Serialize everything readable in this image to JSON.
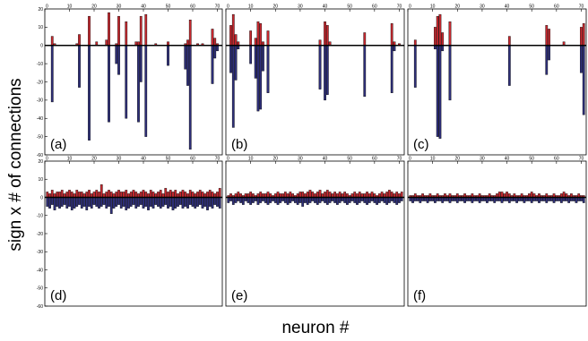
{
  "figure": {
    "ylabel": "sign x # of connections",
    "xlabel": "neuron #"
  },
  "colors": {
    "positive": "#c8282f",
    "negative": "#2e2f7a",
    "zero_line": "#000000",
    "frame": "#000000"
  },
  "chart_data": [
    {
      "type": "bar",
      "panel_label": "(a)",
      "xlim": [
        0,
        72
      ],
      "ylim": [
        -60,
        20
      ],
      "xticks": [
        "0",
        "10",
        "20",
        "30",
        "40",
        "50",
        "60",
        "70"
      ],
      "yticks": [
        "20",
        "10",
        "0",
        "-10",
        "-20",
        "-30",
        "-40",
        "-50",
        "-60"
      ],
      "bars": [
        {
          "x": 3,
          "pos": 5,
          "neg": -31
        },
        {
          "x": 4,
          "pos": 1,
          "neg": 0
        },
        {
          "x": 13,
          "pos": 1,
          "neg": 0
        },
        {
          "x": 14,
          "pos": 6,
          "neg": -23
        },
        {
          "x": 18,
          "pos": 16,
          "neg": -52
        },
        {
          "x": 21,
          "pos": 2,
          "neg": 0
        },
        {
          "x": 25,
          "pos": 3,
          "neg": 0
        },
        {
          "x": 26,
          "pos": 18,
          "neg": -42
        },
        {
          "x": 29,
          "pos": 1,
          "neg": -10
        },
        {
          "x": 30,
          "pos": 16,
          "neg": -16
        },
        {
          "x": 33,
          "pos": 13,
          "neg": -40
        },
        {
          "x": 37,
          "pos": 2,
          "neg": 0
        },
        {
          "x": 38,
          "pos": 2,
          "neg": -42
        },
        {
          "x": 39,
          "pos": 16,
          "neg": -20
        },
        {
          "x": 41,
          "pos": 17,
          "neg": -50
        },
        {
          "x": 45,
          "pos": 1,
          "neg": 0
        },
        {
          "x": 50,
          "pos": 2,
          "neg": -11
        },
        {
          "x": 57,
          "pos": 1,
          "neg": -13
        },
        {
          "x": 58,
          "pos": 3,
          "neg": -22
        },
        {
          "x": 59,
          "pos": 14,
          "neg": -57
        },
        {
          "x": 62,
          "pos": 1,
          "neg": 0
        },
        {
          "x": 64,
          "pos": 1,
          "neg": 0
        },
        {
          "x": 68,
          "pos": 9,
          "neg": -21
        },
        {
          "x": 69,
          "pos": 4,
          "neg": -7
        },
        {
          "x": 70,
          "pos": 1,
          "neg": -3
        }
      ]
    },
    {
      "type": "bar",
      "panel_label": "(b)",
      "xlim": [
        0,
        72
      ],
      "ylim": [
        -60,
        20
      ],
      "xticks": [
        "0",
        "10",
        "20",
        "30",
        "40",
        "50",
        "60",
        "70"
      ],
      "yticks": [],
      "bars": [
        {
          "x": 2,
          "pos": 11,
          "neg": -15
        },
        {
          "x": 3,
          "pos": 17,
          "neg": -45
        },
        {
          "x": 4,
          "pos": 6,
          "neg": -19
        },
        {
          "x": 5,
          "pos": 2,
          "neg": -2
        },
        {
          "x": 10,
          "pos": 8,
          "neg": -10
        },
        {
          "x": 12,
          "pos": 4,
          "neg": -18
        },
        {
          "x": 13,
          "pos": 13,
          "neg": -36
        },
        {
          "x": 14,
          "pos": 12,
          "neg": -35
        },
        {
          "x": 15,
          "pos": 2,
          "neg": -14
        },
        {
          "x": 17,
          "pos": 8,
          "neg": -26
        },
        {
          "x": 38,
          "pos": 3,
          "neg": -24
        },
        {
          "x": 40,
          "pos": 13,
          "neg": -30
        },
        {
          "x": 41,
          "pos": 11,
          "neg": -27
        },
        {
          "x": 42,
          "pos": 2,
          "neg": 0
        },
        {
          "x": 56,
          "pos": 7,
          "neg": -28
        },
        {
          "x": 67,
          "pos": 12,
          "neg": -26
        },
        {
          "x": 68,
          "pos": 2,
          "neg": -3
        },
        {
          "x": 70,
          "pos": 1,
          "neg": 0
        }
      ]
    },
    {
      "type": "bar",
      "panel_label": "(c)",
      "xlim": [
        0,
        72
      ],
      "ylim": [
        -60,
        20
      ],
      "xticks": [
        "0",
        "10",
        "20",
        "30",
        "40",
        "50",
        "60",
        "70"
      ],
      "yticks": [],
      "bars": [
        {
          "x": 3,
          "pos": 3,
          "neg": -23
        },
        {
          "x": 11,
          "pos": 10,
          "neg": -2
        },
        {
          "x": 12,
          "pos": 16,
          "neg": -50
        },
        {
          "x": 13,
          "pos": 17,
          "neg": -51
        },
        {
          "x": 14,
          "pos": 7,
          "neg": -3
        },
        {
          "x": 17,
          "pos": 13,
          "neg": -30
        },
        {
          "x": 41,
          "pos": 5,
          "neg": -22
        },
        {
          "x": 56,
          "pos": 11,
          "neg": -16
        },
        {
          "x": 57,
          "pos": 9,
          "neg": -8
        },
        {
          "x": 63,
          "pos": 2,
          "neg": 0
        },
        {
          "x": 70,
          "pos": 10,
          "neg": -15
        },
        {
          "x": 71,
          "pos": 12,
          "neg": -38
        }
      ]
    },
    {
      "type": "bar",
      "panel_label": "(d)",
      "xlim": [
        0,
        72
      ],
      "ylim": [
        -60,
        20
      ],
      "xticks": [
        "0",
        "10",
        "20",
        "30",
        "40",
        "50",
        "60",
        "70"
      ],
      "yticks": [
        "20",
        "10",
        "0",
        "-10",
        "-20",
        "-30",
        "-40",
        "-50",
        "-60"
      ],
      "pos_values": [
        3,
        2,
        4,
        2,
        3,
        3,
        4,
        2,
        3,
        4,
        3,
        2,
        4,
        3,
        3,
        2,
        3,
        4,
        2,
        3,
        4,
        3,
        7,
        2,
        3,
        4,
        3,
        2,
        3,
        4,
        3,
        3,
        4,
        2,
        3,
        4,
        3,
        2,
        3,
        4,
        3,
        2,
        4,
        3,
        2,
        3,
        4,
        2,
        5,
        3,
        4,
        3,
        4,
        2,
        3,
        4,
        3,
        2,
        4,
        3,
        2,
        3,
        4,
        3,
        2,
        3,
        4,
        3,
        2,
        3,
        5
      ],
      "neg_values": [
        -5,
        -6,
        -4,
        -7,
        -5,
        -6,
        -5,
        -4,
        -6,
        -5,
        -7,
        -6,
        -5,
        -4,
        -6,
        -5,
        -7,
        -5,
        -6,
        -4,
        -5,
        -6,
        -5,
        -4,
        -6,
        -5,
        -9,
        -6,
        -5,
        -4,
        -6,
        -5,
        -7,
        -6,
        -5,
        -4,
        -6,
        -5,
        -4,
        -6,
        -5,
        -7,
        -5,
        -6,
        -4,
        -5,
        -6,
        -5,
        -4,
        -6,
        -5,
        -7,
        -6,
        -5,
        -4,
        -6,
        -5,
        -6,
        -4,
        -5,
        -6,
        -5,
        -4,
        -6,
        -5,
        -7,
        -5,
        -6,
        -4,
        -5,
        -6
      ]
    },
    {
      "type": "bar",
      "panel_label": "(e)",
      "xlim": [
        0,
        72
      ],
      "ylim": [
        -60,
        20
      ],
      "xticks": [
        "0",
        "10",
        "20",
        "30",
        "40",
        "50",
        "60",
        "70"
      ],
      "yticks": [],
      "pos_values": [
        1,
        2,
        1,
        2,
        3,
        2,
        1,
        2,
        2,
        3,
        2,
        1,
        2,
        3,
        2,
        2,
        3,
        2,
        1,
        2,
        3,
        2,
        2,
        3,
        2,
        3,
        2,
        1,
        2,
        3,
        3,
        2,
        3,
        4,
        3,
        2,
        3,
        4,
        2,
        3,
        4,
        3,
        2,
        3,
        2,
        3,
        2,
        3,
        2,
        1,
        2,
        3,
        2,
        3,
        2,
        2,
        3,
        2,
        3,
        2,
        1,
        2,
        3,
        2,
        3,
        4,
        3,
        2,
        3,
        2,
        3
      ],
      "neg_values": [
        -3,
        -2,
        -4,
        -3,
        -2,
        -3,
        -4,
        -2,
        -3,
        -4,
        -3,
        -2,
        -4,
        -3,
        -2,
        -3,
        -4,
        -3,
        -2,
        -3,
        -4,
        -3,
        -2,
        -3,
        -4,
        -3,
        -2,
        -3,
        -4,
        -3,
        -5,
        -3,
        -4,
        -3,
        -2,
        -3,
        -4,
        -3,
        -2,
        -3,
        -4,
        -3,
        -2,
        -3,
        -4,
        -3,
        -2,
        -3,
        -4,
        -3,
        -2,
        -3,
        -4,
        -3,
        -2,
        -3,
        -4,
        -3,
        -2,
        -3,
        -4,
        -3,
        -2,
        -3,
        -4,
        -3,
        -2,
        -3,
        -4,
        -3,
        -2
      ]
    },
    {
      "type": "bar",
      "panel_label": "(f)",
      "xlim": [
        0,
        72
      ],
      "ylim": [
        -60,
        20
      ],
      "xticks": [
        "0",
        "10",
        "20",
        "30",
        "40",
        "50",
        "60",
        "70"
      ],
      "yticks": [],
      "pos_values": [
        1,
        1,
        2,
        1,
        1,
        2,
        1,
        1,
        2,
        1,
        1,
        2,
        1,
        1,
        2,
        1,
        2,
        1,
        1,
        2,
        1,
        1,
        2,
        1,
        1,
        2,
        1,
        1,
        2,
        1,
        1,
        1,
        2,
        1,
        1,
        2,
        3,
        3,
        2,
        3,
        2,
        1,
        2,
        1,
        1,
        2,
        1,
        1,
        2,
        3,
        2,
        1,
        2,
        1,
        1,
        2,
        1,
        1,
        2,
        1,
        1,
        2,
        3,
        2,
        1,
        2,
        1,
        1,
        2,
        1,
        1
      ],
      "neg_values": [
        -2,
        -3,
        -2,
        -2,
        -3,
        -2,
        -2,
        -3,
        -2,
        -2,
        -3,
        -2,
        -2,
        -3,
        -2,
        -2,
        -3,
        -2,
        -2,
        -3,
        -2,
        -2,
        -3,
        -2,
        -2,
        -3,
        -2,
        -2,
        -3,
        -2,
        -2,
        -3,
        -2,
        -2,
        -3,
        -2,
        -2,
        -3,
        -2,
        -2,
        -3,
        -2,
        -2,
        -3,
        -2,
        -2,
        -3,
        -2,
        -2,
        -3,
        -2,
        -2,
        -3,
        -2,
        -2,
        -3,
        -2,
        -2,
        -3,
        -2,
        -2,
        -3,
        -2,
        -2,
        -3,
        -2,
        -2,
        -3,
        -2,
        -2,
        -3
      ]
    }
  ]
}
